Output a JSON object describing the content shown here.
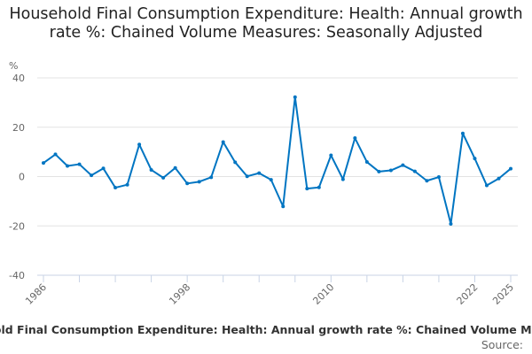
{
  "chart_data": {
    "type": "line",
    "title": "Household Final Consumption Expenditure: Health: Annual growth rate %: Chained Volume Measures: Seasonally Adjusted",
    "ylabel": "%",
    "ylim": [
      -40,
      40
    ],
    "yticks": [
      40,
      20,
      0,
      -20,
      -40
    ],
    "xlabels": [
      1986,
      1998,
      2010,
      2022,
      2025
    ],
    "grid": true,
    "color": "#0075c2",
    "series": [
      {
        "name": "Household Final Consumption Expenditure: Health: Annual growth rate %: Chained Volume Measures:",
        "x": [
          1986,
          1987,
          1988,
          1989,
          1990,
          1991,
          1992,
          1993,
          1994,
          1995,
          1996,
          1997,
          1998,
          1999,
          2000,
          2001,
          2002,
          2003,
          2004,
          2005,
          2006,
          2007,
          2008,
          2009,
          2010,
          2011,
          2012,
          2013,
          2014,
          2015,
          2016,
          2017,
          2018,
          2019,
          2020,
          2021,
          2022,
          2023,
          2024,
          2025
        ],
        "values": [
          5.5,
          9,
          4.3,
          5,
          0.5,
          3.3,
          -4.5,
          -3.3,
          13,
          2.7,
          -0.5,
          3.5,
          -2.8,
          -2.1,
          -0.3,
          14,
          5.8,
          0.1,
          1.4,
          -1.3,
          -12.1,
          32.2,
          -4.9,
          -4.4,
          8.6,
          -1.1,
          15.6,
          5.9,
          2,
          2.5,
          4.6,
          2.1,
          -1.7,
          -0.2,
          -19.2,
          17.5,
          7.3,
          -3.6,
          -0.8,
          3.2
        ]
      }
    ],
    "legend_position": "bottom",
    "source_label": "Source:"
  }
}
